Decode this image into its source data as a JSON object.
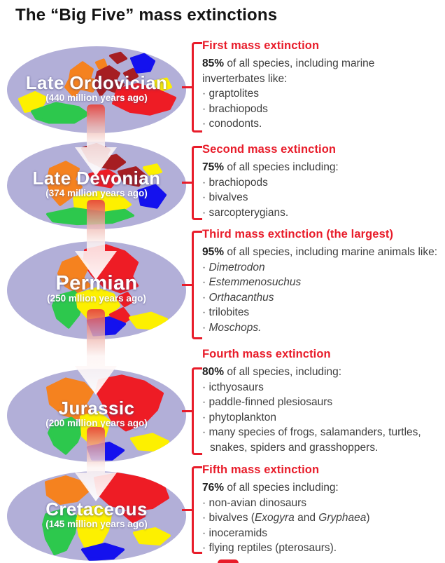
{
  "title": "The “Big Five” mass extinctions",
  "bullet_marker": "·",
  "colors": {
    "accent_red": "#e81c2a",
    "body_text": "#3e3e3e",
    "map_bg": "#b2afd8",
    "continent_orange": "#f5821f",
    "continent_red": "#ee1c25",
    "continent_dark_red": "#a61e22",
    "continent_blue": "#1411ee",
    "continent_yellow": "#fdf000",
    "continent_green": "#2dc84d"
  },
  "globes": [
    {
      "era": "Late Ordovician",
      "years": "(440 million years ago)"
    },
    {
      "era": "Late Devonian",
      "years": "(374 million years ago)"
    },
    {
      "era": "Permian",
      "years": "(250 mllion years ago)"
    },
    {
      "era": "Jurassic",
      "years": "(200 million years ago)"
    },
    {
      "era": "Cretaceous",
      "years": "(145 million years ago)"
    }
  ],
  "sections": [
    {
      "heading": "First mass extinction",
      "pct": "85%",
      "intro": "of all species, including marine inverterbates like:",
      "bullets": [
        [
          {
            "t": "graptolites"
          }
        ],
        [
          {
            "t": "brachiopods"
          }
        ],
        [
          {
            "t": "conodonts."
          }
        ]
      ]
    },
    {
      "heading": "Second mass extinction",
      "pct": "75%",
      "intro": "of all species including:",
      "bullets": [
        [
          {
            "t": "brachiopods"
          }
        ],
        [
          {
            "t": "bivalves"
          }
        ],
        [
          {
            "t": "sarcopterygians."
          }
        ]
      ]
    },
    {
      "heading": "Third mass extinction (the largest)",
      "pct": "95%",
      "intro": "of all species, including marine animals like:",
      "bullets": [
        [
          {
            "t": "Dimetrodon",
            "i": true
          }
        ],
        [
          {
            "t": "Estemmenosuchus",
            "i": true
          }
        ],
        [
          {
            "t": "Orthacanthus",
            "i": true
          }
        ],
        [
          {
            "t": "trilobites"
          }
        ],
        [
          {
            "t": "Moschops.",
            "i": true
          }
        ]
      ]
    },
    {
      "heading": "Fourth mass extinction",
      "pct": "80%",
      "intro": "of all species, including:",
      "bullets": [
        [
          {
            "t": "icthyosaurs"
          }
        ],
        [
          {
            "t": "paddle-finned plesiosaurs"
          }
        ],
        [
          {
            "t": "phytoplankton"
          }
        ],
        [
          {
            "t": "many species of frogs, salamanders, turtles, snakes, spiders and grasshoppers."
          }
        ]
      ]
    },
    {
      "heading": "Fifth mass extinction",
      "pct": "76%",
      "intro": "of all species including:",
      "bullets": [
        [
          {
            "t": "non-avian dinosaurs"
          }
        ],
        [
          {
            "t": "bivalves ("
          },
          {
            "t": "Exogyra",
            "i": true
          },
          {
            "t": " and "
          },
          {
            "t": "Gryphaea",
            "i": true
          },
          {
            "t": ")"
          }
        ],
        [
          {
            "t": "inoceramids"
          }
        ],
        [
          {
            "t": "flying reptiles (pterosaurs)."
          }
        ]
      ]
    }
  ]
}
